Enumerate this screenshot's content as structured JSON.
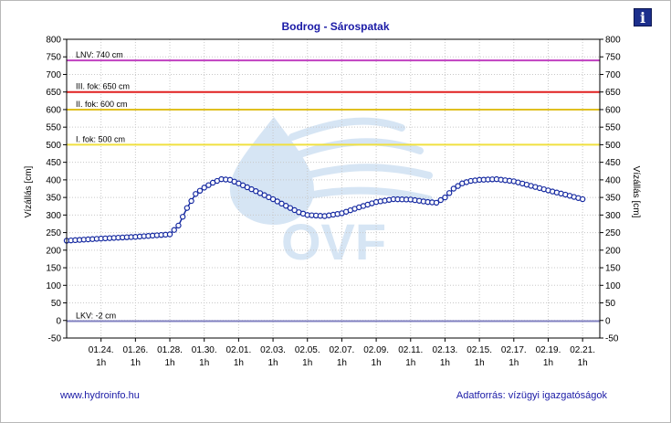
{
  "header": {
    "title": "Bodrog - Sárospatak",
    "info_icon": "info-icon"
  },
  "footer": {
    "source_link": "www.hydroinfo.hu",
    "data_source": "Adatforrás: vízügyi igazgatóságok"
  },
  "watermark": {
    "text": "OVF"
  },
  "chart_data": {
    "type": "line",
    "ylabel": "Vízállás [cm]",
    "ylim": [
      -50,
      800
    ],
    "yticks": [
      -50,
      0,
      50,
      100,
      150,
      200,
      250,
      300,
      350,
      400,
      450,
      500,
      550,
      600,
      650,
      700,
      750,
      800
    ],
    "grid": true,
    "xlim": [
      "01.22. 0h",
      "02.22. 0h"
    ],
    "x_tick_labels": [
      {
        "date": "01.24.",
        "hour": "1h"
      },
      {
        "date": "01.26.",
        "hour": "1h"
      },
      {
        "date": "01.28.",
        "hour": "1h"
      },
      {
        "date": "01.30.",
        "hour": "1h"
      },
      {
        "date": "02.01.",
        "hour": "1h"
      },
      {
        "date": "02.03.",
        "hour": "1h"
      },
      {
        "date": "02.05.",
        "hour": "1h"
      },
      {
        "date": "02.07.",
        "hour": "1h"
      },
      {
        "date": "02.09.",
        "hour": "1h"
      },
      {
        "date": "02.11.",
        "hour": "1h"
      },
      {
        "date": "02.13.",
        "hour": "1h"
      },
      {
        "date": "02.15.",
        "hour": "1h"
      },
      {
        "date": "02.17.",
        "hour": "1h"
      },
      {
        "date": "02.19.",
        "hour": "1h"
      },
      {
        "date": "02.21.",
        "hour": "1h"
      }
    ],
    "levels": [
      {
        "label": "LNV: 740 cm",
        "value": 740,
        "color": "#c040c0"
      },
      {
        "label": "III. fok: 650 cm",
        "value": 650,
        "color": "#e02020"
      },
      {
        "label": "II. fok: 600 cm",
        "value": 600,
        "color": "#e0c020"
      },
      {
        "label": "I. fok: 500 cm",
        "value": 500,
        "color": "#f0e040"
      },
      {
        "label": "LKV: -2 cm",
        "value": -2,
        "color": "#8080c0"
      }
    ],
    "series": [
      {
        "color": "#1428a0",
        "x_days": [
          0,
          2,
          4,
          6,
          6.5,
          7,
          7.5,
          8,
          8.5,
          9,
          9.5,
          10,
          11,
          12,
          13,
          13.5,
          14,
          15,
          16,
          17,
          18,
          19,
          20,
          21,
          21.5,
          22,
          22.5,
          23,
          23.5,
          24,
          25,
          26,
          27,
          28,
          29,
          30
        ],
        "values": [
          227,
          233,
          238,
          245,
          270,
          320,
          360,
          378,
          392,
          402,
          400,
          390,
          368,
          345,
          320,
          308,
          300,
          297,
          305,
          322,
          337,
          345,
          344,
          337,
          335,
          350,
          375,
          390,
          397,
          400,
          402,
          396,
          383,
          370,
          358,
          345
        ]
      }
    ]
  }
}
